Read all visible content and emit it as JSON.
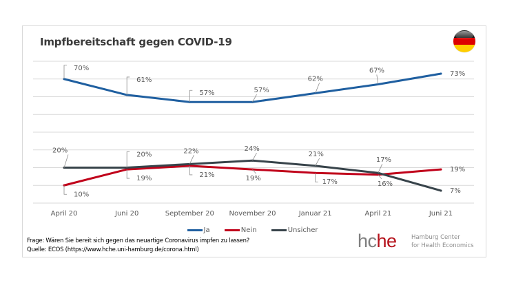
{
  "chart_data": {
    "type": "line",
    "title": "Impfbereitschaft gegen COVID-19",
    "categories": [
      "April 20",
      "Juni 20",
      "September 20",
      "November 20",
      "Januar 21",
      "April 21",
      "Juni 21"
    ],
    "ylim": [
      0,
      80
    ],
    "yticks_step": 10,
    "grid": true,
    "legend_position": "bottom",
    "series": [
      {
        "name": "Ja",
        "color": "#1f5fa0",
        "values": [
          70,
          61,
          57,
          57,
          62,
          67,
          73
        ],
        "labels": [
          "70%",
          "61%",
          "57%",
          "57%",
          "62%",
          "67%",
          "73%"
        ]
      },
      {
        "name": "Nein",
        "color": "#c0001a",
        "values": [
          10,
          19,
          21,
          19,
          17,
          16,
          19
        ],
        "labels": [
          "10%",
          "19%",
          "21%",
          "19%",
          "17%",
          "16%",
          "19%"
        ]
      },
      {
        "name": "Unsicher",
        "color": "#37434a",
        "values": [
          20,
          20,
          22,
          24,
          21,
          17,
          7
        ],
        "labels": [
          "20%",
          "20%",
          "22%",
          "24%",
          "21%",
          "17%",
          "7%"
        ]
      }
    ]
  },
  "notes": {
    "question": "Frage: Wären Sie bereit sich gegen das neuartige Coronavirus impfen zu lassen?",
    "source": "Quelle: ECOS (https://www.hche.uni-hamburg.de/corona.html)"
  },
  "logo": {
    "mark_gray": "hc",
    "mark_red": "he",
    "line1": "Hamburg Center",
    "line2": "for Health Economics"
  },
  "flag": {
    "icon": "germany-flag-icon",
    "colors": [
      "#000000",
      "#dd0000",
      "#ffce00"
    ]
  }
}
